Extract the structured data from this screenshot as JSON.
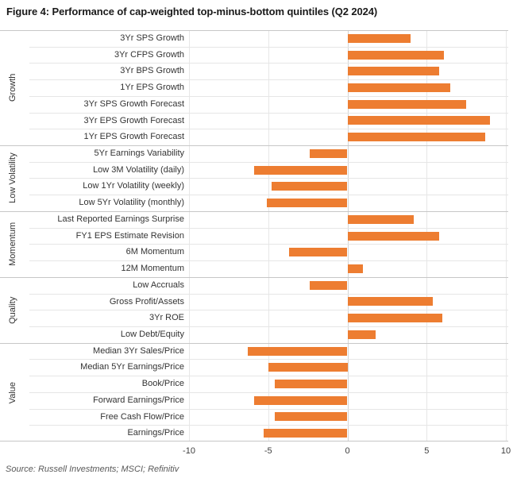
{
  "title": "Figure 4: Performance of cap-weighted top-minus-bottom quintiles (Q2 2024)",
  "source": "Source: Russell Investments; MSCI; Refinitiv",
  "colors": {
    "bar": "#ED7D31",
    "gridline": "#e6e6e6",
    "group_separator": "#c7c7c7",
    "zero_line": "#d4d4d4",
    "text": "#333333"
  },
  "chart_data": {
    "type": "bar",
    "orientation": "horizontal",
    "title": "Figure 4: Performance of cap-weighted top-minus-bottom quintiles (Q2 2024)",
    "xlabel": "",
    "ylabel": "",
    "xlim": [
      -10,
      10
    ],
    "x_ticks": [
      -10,
      -5,
      0,
      5,
      10
    ],
    "grid": true,
    "legend": false,
    "groups": [
      {
        "name": "Growth",
        "items": [
          {
            "label": "3Yr SPS Growth",
            "value": 4.0
          },
          {
            "label": "3Yr CFPS Growth",
            "value": 6.1
          },
          {
            "label": "3Yr BPS Growth",
            "value": 5.8
          },
          {
            "label": "1Yr EPS Growth",
            "value": 6.5
          },
          {
            "label": "3Yr SPS Growth Forecast",
            "value": 7.5
          },
          {
            "label": "3Yr EPS Growth Forecast",
            "value": 9.0
          },
          {
            "label": "1Yr EPS Growth Forecast",
            "value": 8.7
          }
        ]
      },
      {
        "name": "Low Volatility",
        "items": [
          {
            "label": "5Yr Earnings Variability",
            "value": -2.4
          },
          {
            "label": "Low 3M Volatility (daily)",
            "value": -5.9
          },
          {
            "label": "Low 1Yr Volatility (weekly)",
            "value": -4.8
          },
          {
            "label": "Low 5Yr Volatility (monthly)",
            "value": -5.1
          }
        ]
      },
      {
        "name": "Momentum",
        "items": [
          {
            "label": "Last Reported Earnings Surprise",
            "value": 4.2
          },
          {
            "label": "FY1 EPS Estimate Revision",
            "value": 5.8
          },
          {
            "label": "6M Momentum",
            "value": -3.7
          },
          {
            "label": "12M Momentum",
            "value": 1.0
          }
        ]
      },
      {
        "name": "Quality",
        "items": [
          {
            "label": "Low Accruals",
            "value": -2.4
          },
          {
            "label": "Gross Profit/Assets",
            "value": 5.4
          },
          {
            "label": "3Yr ROE",
            "value": 6.0
          },
          {
            "label": "Low Debt/Equity",
            "value": 1.8
          }
        ]
      },
      {
        "name": "Value",
        "items": [
          {
            "label": "Median 3Yr Sales/Price",
            "value": -6.3
          },
          {
            "label": "Median 5Yr Earnings/Price",
            "value": -5.0
          },
          {
            "label": "Book/Price",
            "value": -4.6
          },
          {
            "label": "Forward Earnings/Price",
            "value": -5.9
          },
          {
            "label": "Free Cash Flow/Price",
            "value": -4.6
          },
          {
            "label": "Earnings/Price",
            "value": -5.3
          }
        ]
      }
    ]
  }
}
